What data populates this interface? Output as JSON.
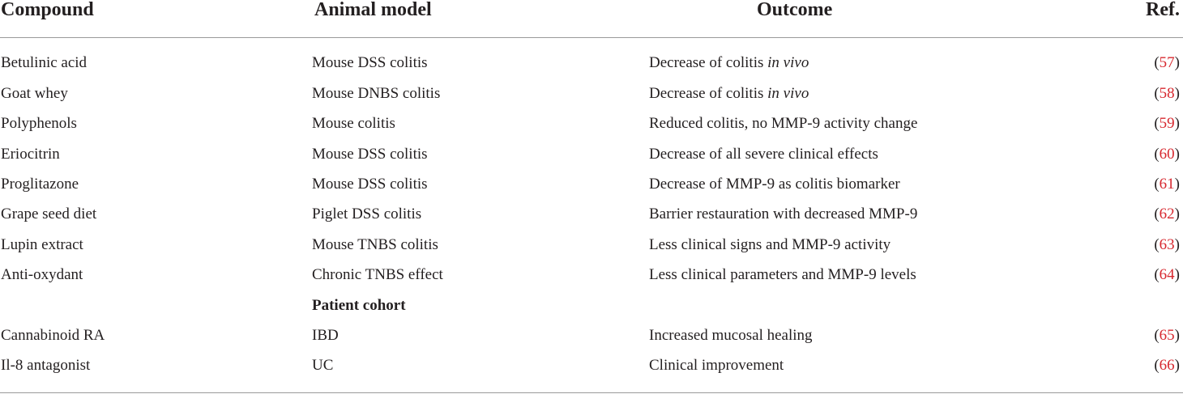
{
  "headers": {
    "compound": "Compound",
    "animal_model": "Animal model",
    "outcome": "Outcome",
    "ref": "Ref."
  },
  "rows": [
    {
      "compound": "Betulinic acid",
      "model": "Mouse DSS colitis",
      "outcome": "Decrease of colitis ",
      "outcome_italic": "in vivo",
      "ref": "57"
    },
    {
      "compound": "Goat whey",
      "model": "Mouse DNBS colitis",
      "outcome": "Decrease of colitis ",
      "outcome_italic": "in vivo",
      "ref": "58"
    },
    {
      "compound": "Polyphenols",
      "model": "Mouse colitis",
      "outcome": "Reduced colitis, no MMP-9 activity change",
      "outcome_italic": "",
      "ref": "59"
    },
    {
      "compound": "Eriocitrin",
      "model": "Mouse DSS colitis",
      "outcome": "Decrease of all severe clinical effects",
      "outcome_italic": "",
      "ref": "60"
    },
    {
      "compound": "Proglitazone",
      "model": "Mouse DSS colitis",
      "outcome": "Decrease of MMP-9 as colitis biomarker",
      "outcome_italic": "",
      "ref": "61"
    },
    {
      "compound": "Grape seed diet",
      "model": "Piglet DSS colitis",
      "outcome": "Barrier restauration with decreased MMP-9",
      "outcome_italic": "",
      "ref": "62"
    },
    {
      "compound": "Lupin extract",
      "model": "Mouse TNBS colitis",
      "outcome": "Less clinical signs and MMP-9 activity",
      "outcome_italic": "",
      "ref": "63"
    },
    {
      "compound": "Anti-oxydant",
      "model": "Chronic TNBS effect",
      "outcome": "Less clinical parameters and MMP-9 levels",
      "outcome_italic": "",
      "ref": "64"
    }
  ],
  "subheading": "Patient cohort",
  "cohort_rows": [
    {
      "compound": "Cannabinoid RA",
      "model": "IBD",
      "outcome": "Increased mucosal healing",
      "ref": "65"
    },
    {
      "compound": "Il-8 antagonist",
      "model": "UC",
      "outcome": "Clinical improvement",
      "ref": "66"
    }
  ],
  "colors": {
    "text": "#231f20",
    "ref_link": "#d7282f",
    "rule": "#9a9a9a"
  }
}
